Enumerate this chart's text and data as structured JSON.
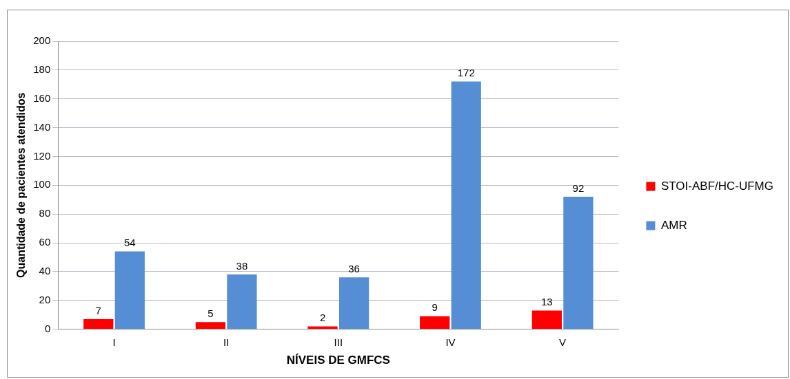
{
  "chart_data": {
    "type": "bar",
    "xlabel": "NÍVEIS DE GMFCS",
    "ylabel": "Quantidade de pacientes atendidos",
    "categories": [
      "I",
      "II",
      "III",
      "IV",
      "V"
    ],
    "series": [
      {
        "name": "STOI-ABF/HC-UFMG",
        "color": "#ff0000",
        "values": [
          7,
          5,
          2,
          9,
          13
        ]
      },
      {
        "name": "AMR",
        "color": "#558ed5",
        "values": [
          54,
          38,
          36,
          172,
          92
        ]
      }
    ],
    "ylim": [
      0,
      200
    ],
    "yticks": [
      0,
      20,
      40,
      60,
      80,
      100,
      120,
      140,
      160,
      180,
      200
    ],
    "grid": "y",
    "legend": "right",
    "data_labels": true
  }
}
